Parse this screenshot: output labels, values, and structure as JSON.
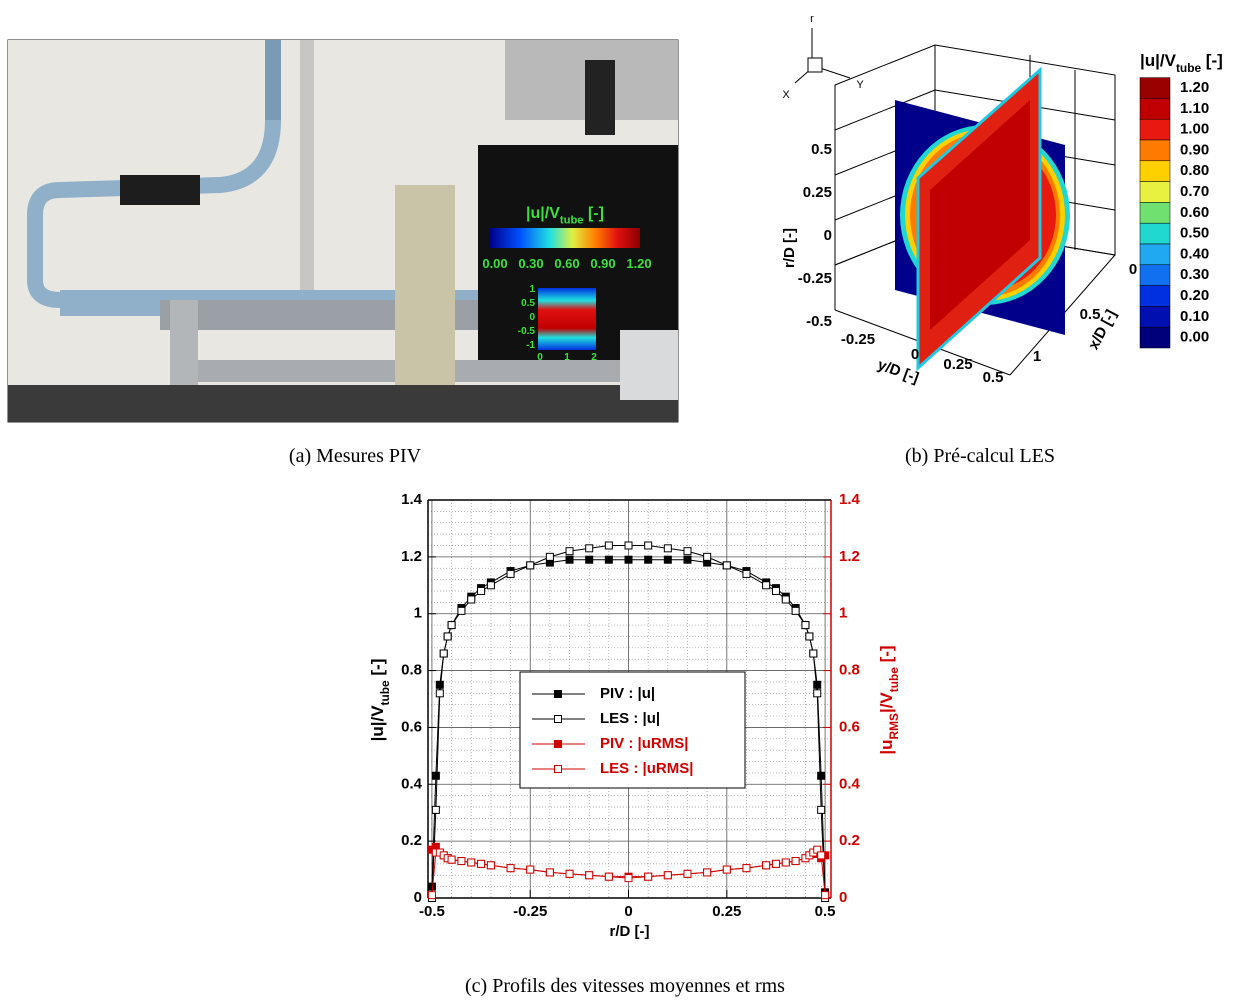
{
  "captions": [
    "(a) Mesures PIV",
    "(b) Pré-calcul LES",
    "(c) Profils des vitesses moyennes et rms"
  ],
  "photo": {
    "legend_title": [
      {
        "text": "|u|/V"
      },
      {
        "text": "tube",
        "sub": true
      },
      {
        "text": " [-]"
      }
    ],
    "legend_ticks": [
      "0.00",
      "0.30",
      "0.60",
      "0.90",
      "1.20"
    ],
    "inset_y_ticks": [
      "1",
      "0.5",
      "0",
      "-0.5",
      "-1"
    ],
    "inset_x_ticks": [
      "0",
      "1",
      "2"
    ]
  },
  "les": {
    "triad": [
      "r",
      "X",
      "Y"
    ],
    "r_label": "r/D [-]",
    "r_ticks": [
      "0.5",
      "0.25",
      "0",
      "-0.25",
      "-0.5"
    ],
    "y_label": "y/D [-]",
    "y_ticks": [
      "-0.25",
      "0",
      "0.25",
      "0.5"
    ],
    "x_label": "x/D [-]",
    "x_ticks": [
      "0",
      "0.5",
      "1"
    ],
    "colorbar_title": [
      {
        "text": "|u|/V"
      },
      {
        "text": "tube",
        "sub": true
      },
      {
        "text": " [-]"
      }
    ],
    "levels": [
      {
        "label": "1.20",
        "color": "#9a0000"
      },
      {
        "label": "1.10",
        "color": "#c00000"
      },
      {
        "label": "1.00",
        "color": "#e81a10"
      },
      {
        "label": "0.90",
        "color": "#ff7a00"
      },
      {
        "label": "0.80",
        "color": "#ffd000"
      },
      {
        "label": "0.70",
        "color": "#e8f040"
      },
      {
        "label": "0.60",
        "color": "#70e070"
      },
      {
        "label": "0.50",
        "color": "#20d8d0"
      },
      {
        "label": "0.40",
        "color": "#20a8f0"
      },
      {
        "label": "0.30",
        "color": "#1070f0"
      },
      {
        "label": "0.20",
        "color": "#0030e0"
      },
      {
        "label": "0.10",
        "color": "#0010b0"
      },
      {
        "label": "0.00",
        "color": "#00007a"
      }
    ]
  },
  "chart_data": {
    "type": "line",
    "xlabel": "r/D [-]",
    "ylabel": [
      {
        "text": "|u|/V"
      },
      {
        "text": "tube",
        "sub": true
      },
      {
        "text": " [-]"
      }
    ],
    "y2label": [
      {
        "text": "|u"
      },
      {
        "text": "RMS",
        "sub": true
      },
      {
        "text": "|/V"
      },
      {
        "text": "tube",
        "sub": true
      },
      {
        "text": " [-]"
      }
    ],
    "x": [
      -0.5,
      -0.49,
      -0.48,
      -0.47,
      -0.46,
      -0.45,
      -0.425,
      -0.4,
      -0.375,
      -0.35,
      -0.3,
      -0.25,
      -0.2,
      -0.15,
      -0.1,
      -0.05,
      0,
      0.05,
      0.1,
      0.15,
      0.2,
      0.25,
      0.3,
      0.35,
      0.375,
      0.4,
      0.425,
      0.45,
      0.46,
      0.47,
      0.48,
      0.49,
      0.5
    ],
    "series": [
      {
        "name": "PIV : |u|",
        "color": "#000000",
        "filled": true,
        "values": [
          0.04,
          0.43,
          0.75,
          0.86,
          0.92,
          0.96,
          1.02,
          1.06,
          1.09,
          1.11,
          1.15,
          1.17,
          1.18,
          1.19,
          1.19,
          1.19,
          1.19,
          1.19,
          1.19,
          1.19,
          1.18,
          1.17,
          1.15,
          1.11,
          1.09,
          1.06,
          1.02,
          0.96,
          0.92,
          0.86,
          0.75,
          0.43,
          0.02
        ]
      },
      {
        "name": "LES : |u|",
        "color": "#000000",
        "filled": false,
        "values": [
          0,
          0.31,
          0.72,
          0.86,
          0.92,
          0.96,
          1.01,
          1.05,
          1.08,
          1.1,
          1.14,
          1.17,
          1.2,
          1.22,
          1.23,
          1.24,
          1.24,
          1.24,
          1.23,
          1.22,
          1.2,
          1.17,
          1.14,
          1.1,
          1.08,
          1.05,
          1.01,
          0.96,
          0.92,
          0.86,
          0.72,
          0.31,
          0
        ]
      },
      {
        "name": "PIV : |uRMS|",
        "color": "#d00000",
        "filled": true,
        "axis": "y2",
        "values": [
          0.17,
          0.18,
          0.16,
          0.15,
          0.14,
          0.135,
          0.13,
          0.125,
          0.12,
          0.115,
          0.105,
          0.1,
          0.09,
          0.085,
          0.08,
          0.075,
          0.075,
          0.075,
          0.08,
          0.085,
          0.09,
          0.1,
          0.105,
          0.115,
          0.12,
          0.125,
          0.13,
          0.14,
          0.15,
          0.155,
          0.165,
          0.14,
          0.15
        ]
      },
      {
        "name": "LES : |uRMS|",
        "color": "#d00000",
        "filled": false,
        "axis": "y2",
        "values": [
          0.01,
          0.16,
          0.16,
          0.15,
          0.14,
          0.135,
          0.13,
          0.125,
          0.12,
          0.115,
          0.105,
          0.1,
          0.09,
          0.085,
          0.08,
          0.075,
          0.07,
          0.075,
          0.08,
          0.085,
          0.09,
          0.1,
          0.105,
          0.115,
          0.12,
          0.125,
          0.13,
          0.14,
          0.15,
          0.16,
          0.17,
          0.15,
          0.01
        ]
      }
    ],
    "xlim": [
      -0.51,
      0.515
    ],
    "ylim": [
      0,
      1.4
    ],
    "y2lim": [
      0,
      1.4
    ],
    "xticks": [
      -0.5,
      -0.25,
      0,
      0.25,
      0.5
    ],
    "yticks": [
      0,
      0.2,
      0.4,
      0.6,
      0.8,
      1,
      1.2,
      1.4
    ],
    "y2ticks": [
      0,
      0.2,
      0.4,
      0.6,
      0.8,
      1,
      1.2,
      1.4
    ],
    "y2_color": "#d00000",
    "grid": true,
    "minor_grid": true,
    "legend": "center"
  }
}
